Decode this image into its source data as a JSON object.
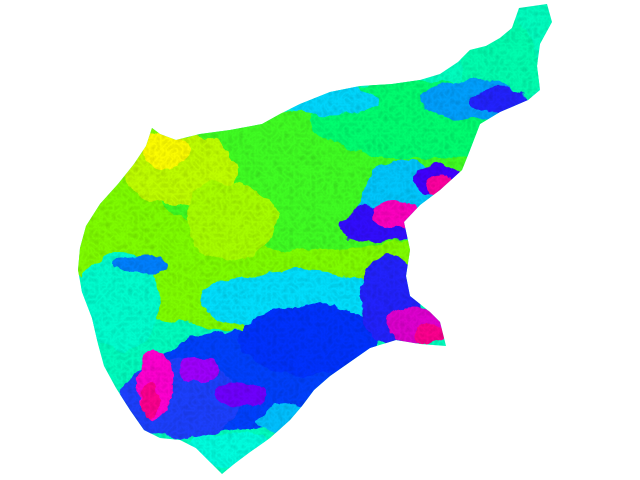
{
  "map": {
    "type": "elevation-raster",
    "colormap": "hsv-rainbow",
    "background": "#ffffff",
    "palette": [
      "#ffff00",
      "#80ff00",
      "#00ff40",
      "#00ffc0",
      "#00c0ff",
      "#0040ff",
      "#4000ff",
      "#c000ff",
      "#ff00c0",
      "#ff0080"
    ]
  }
}
